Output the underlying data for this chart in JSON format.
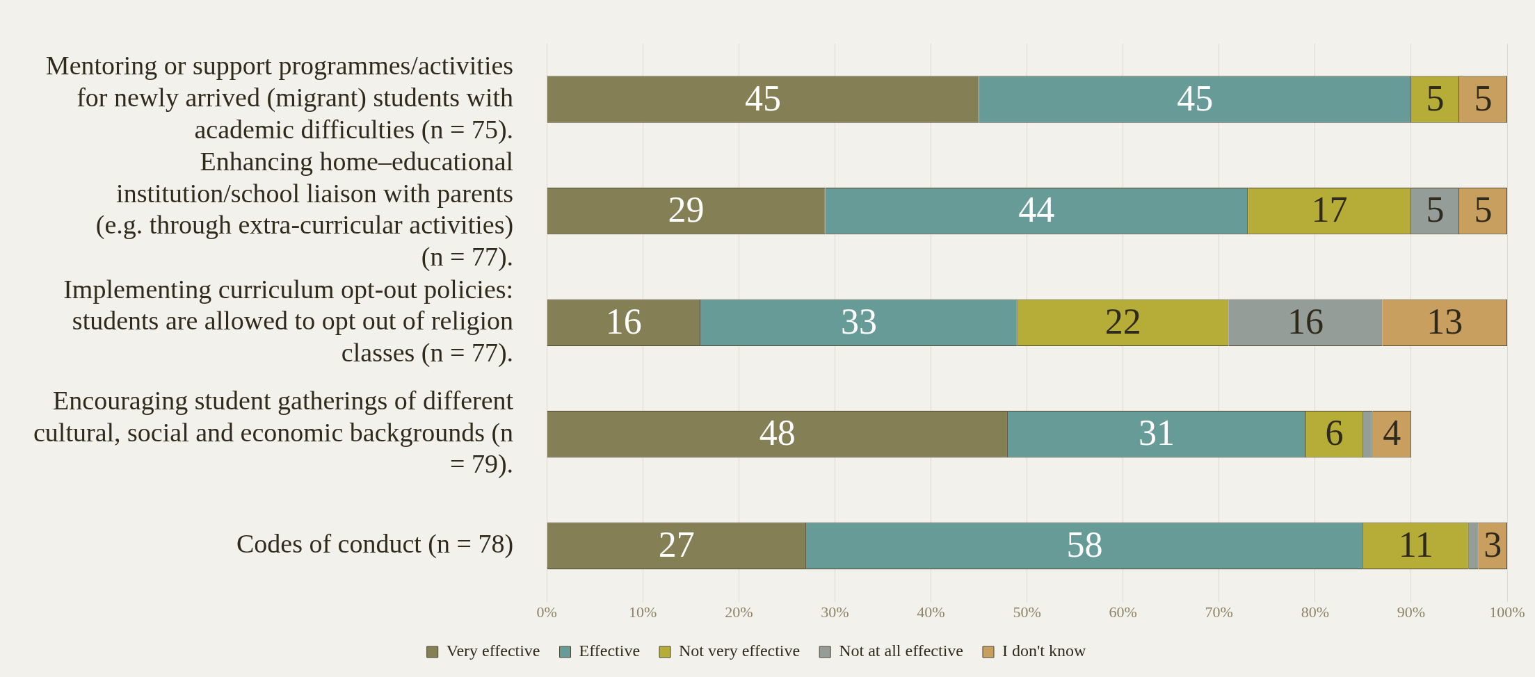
{
  "chart_data": {
    "type": "bar",
    "orientation": "horizontal",
    "stacked": true,
    "categories": [
      "Mentoring or support programmes/activities for newly arrived (migrant) students with academic difficulties (n = 75).",
      "Enhancing home–educational institution/school liaison with parents (e.g. through extra-curricular activities) (n = 77).",
      "Implementing curriculum opt-out policies: students are allowed to opt out of religion classes (n = 77).",
      "Encouraging student gatherings of different cultural, social and economic backgrounds (n = 79).",
      "Codes of conduct (n = 78)"
    ],
    "series": [
      {
        "name": "Very effective",
        "color": "#847f55",
        "values": [
          45,
          29,
          16,
          48,
          27
        ],
        "value_labels": [
          "45",
          "29",
          "16",
          "48",
          "27"
        ]
      },
      {
        "name": "Effective",
        "color": "#679b98",
        "values": [
          45,
          44,
          33,
          31,
          58
        ],
        "value_labels": [
          "45",
          "44",
          "33",
          "31",
          "58"
        ]
      },
      {
        "name": "Not very effective",
        "color": "#b5ad37",
        "values": [
          5,
          17,
          22,
          6,
          11
        ],
        "value_labels": [
          "5",
          "17",
          "22",
          "6",
          "11"
        ]
      },
      {
        "name": "Not at all effective",
        "color": "#949d98",
        "values": [
          0,
          5,
          16,
          1,
          1
        ],
        "value_labels": [
          null,
          "5",
          "16",
          null,
          null
        ]
      },
      {
        "name": "I don't know",
        "color": "#c99f5f",
        "values": [
          5,
          5,
          13,
          4,
          3
        ],
        "value_labels": [
          "5",
          "5",
          "13",
          "4",
          "3"
        ]
      }
    ],
    "xlim": [
      0,
      100
    ],
    "xticks": [
      {
        "value": 0,
        "label": "0%"
      },
      {
        "value": 10,
        "label": "10%"
      },
      {
        "value": 20,
        "label": "20%"
      },
      {
        "value": 30,
        "label": "30%"
      },
      {
        "value": 40,
        "label": "40%"
      },
      {
        "value": 50,
        "label": "50%"
      },
      {
        "value": 60,
        "label": "60%"
      },
      {
        "value": 70,
        "label": "70%"
      },
      {
        "value": 80,
        "label": "80%"
      },
      {
        "value": 90,
        "label": "90%"
      },
      {
        "value": 100,
        "label": "100%"
      }
    ],
    "grid": "x",
    "legend": "bottom"
  }
}
